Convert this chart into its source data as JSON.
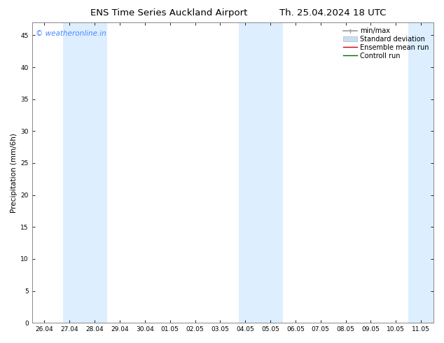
{
  "title_left": "ENS Time Series Auckland Airport",
  "title_right": "Th. 25.04.2024 18 UTC",
  "ylabel": "Precipitation (mm/6h)",
  "ylim": [
    0,
    47
  ],
  "yticks": [
    0,
    5,
    10,
    15,
    20,
    25,
    30,
    35,
    40,
    45
  ],
  "xtick_labels": [
    "26.04",
    "27.04",
    "28.04",
    "29.04",
    "30.04",
    "01.05",
    "02.05",
    "03.05",
    "04.05",
    "05.05",
    "06.05",
    "07.05",
    "08.05",
    "09.05",
    "10.05",
    "11.05"
  ],
  "xtick_positions": [
    0,
    1,
    2,
    3,
    4,
    5,
    6,
    7,
    8,
    9,
    10,
    11,
    12,
    13,
    14,
    15
  ],
  "shaded_bands": [
    [
      0.75,
      1.5
    ],
    [
      1.5,
      2.5
    ],
    [
      7.75,
      8.5
    ],
    [
      8.5,
      9.5
    ],
    [
      14.5,
      15.5
    ]
  ],
  "band_color": "#ddeeff",
  "background_color": "#ffffff",
  "plot_bg_color": "#ffffff",
  "watermark": "© weatheronline.in",
  "watermark_color": "#4488ff",
  "legend_items": [
    "min/max",
    "Standard deviation",
    "Ensemble mean run",
    "Controll run"
  ],
  "title_fontsize": 9.5,
  "tick_fontsize": 6.5,
  "ylabel_fontsize": 7.5,
  "watermark_fontsize": 7.5,
  "legend_fontsize": 7.0,
  "fig_width": 6.34,
  "fig_height": 4.9,
  "dpi": 100
}
